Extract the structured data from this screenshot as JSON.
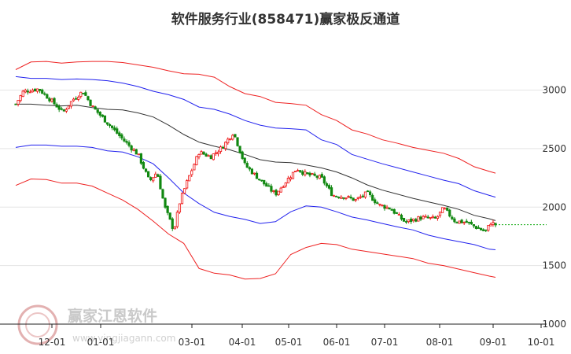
{
  "chart_data": {
    "type": "line",
    "title": "软件服务行业(858471)赢家极反通道",
    "x_ticks": [
      "12-01",
      "01-01",
      "03-01",
      "04-01",
      "05-01",
      "06-01",
      "07-01",
      "08-01",
      "09-01",
      "10-01"
    ],
    "y_ticks": [
      1000,
      1500,
      2000,
      2500,
      3000
    ],
    "ylim": [
      1000,
      3400
    ],
    "grid": true,
    "colors": {
      "outer": "#ee2222",
      "inner": "#2222ee",
      "mid": "#333333",
      "up": "#ee1111",
      "down": "#118811",
      "last": "#11aa11"
    },
    "watermark": {
      "text": "赢家江恩软件",
      "url": "www.yingjiagann.com"
    },
    "last_price": 1850,
    "series": [
      {
        "key": "outer_upper",
        "points": [
          [
            0,
            3175
          ],
          [
            20,
            3240
          ],
          [
            40,
            3245
          ],
          [
            60,
            3230
          ],
          [
            80,
            3240
          ],
          [
            100,
            3245
          ],
          [
            120,
            3245
          ],
          [
            140,
            3235
          ],
          [
            160,
            3215
          ],
          [
            180,
            3195
          ],
          [
            200,
            3165
          ],
          [
            220,
            3140
          ],
          [
            240,
            3135
          ],
          [
            260,
            3110
          ],
          [
            280,
            3030
          ],
          [
            300,
            2970
          ],
          [
            320,
            2945
          ],
          [
            340,
            2895
          ],
          [
            360,
            2885
          ],
          [
            380,
            2870
          ],
          [
            400,
            2790
          ],
          [
            420,
            2740
          ],
          [
            440,
            2660
          ],
          [
            460,
            2625
          ],
          [
            480,
            2575
          ],
          [
            500,
            2545
          ],
          [
            520,
            2510
          ],
          [
            540,
            2485
          ],
          [
            560,
            2460
          ],
          [
            580,
            2415
          ],
          [
            600,
            2345
          ],
          [
            620,
            2305
          ],
          [
            628,
            2290
          ]
        ]
      },
      {
        "key": "inner_upper",
        "points": [
          [
            0,
            3115
          ],
          [
            20,
            3100
          ],
          [
            40,
            3100
          ],
          [
            60,
            3090
          ],
          [
            80,
            3095
          ],
          [
            100,
            3090
          ],
          [
            120,
            3080
          ],
          [
            140,
            3060
          ],
          [
            160,
            3030
          ],
          [
            180,
            2990
          ],
          [
            200,
            2960
          ],
          [
            220,
            2920
          ],
          [
            240,
            2855
          ],
          [
            260,
            2835
          ],
          [
            280,
            2795
          ],
          [
            300,
            2740
          ],
          [
            320,
            2700
          ],
          [
            340,
            2675
          ],
          [
            360,
            2670
          ],
          [
            380,
            2660
          ],
          [
            400,
            2575
          ],
          [
            420,
            2535
          ],
          [
            440,
            2450
          ],
          [
            460,
            2410
          ],
          [
            480,
            2370
          ],
          [
            500,
            2335
          ],
          [
            520,
            2300
          ],
          [
            540,
            2265
          ],
          [
            560,
            2230
          ],
          [
            580,
            2200
          ],
          [
            600,
            2140
          ],
          [
            620,
            2100
          ],
          [
            628,
            2085
          ]
        ]
      },
      {
        "key": "middle",
        "points": [
          [
            0,
            2880
          ],
          [
            20,
            2880
          ],
          [
            40,
            2870
          ],
          [
            60,
            2865
          ],
          [
            80,
            2870
          ],
          [
            100,
            2850
          ],
          [
            120,
            2835
          ],
          [
            140,
            2830
          ],
          [
            160,
            2805
          ],
          [
            180,
            2770
          ],
          [
            200,
            2700
          ],
          [
            220,
            2620
          ],
          [
            240,
            2555
          ],
          [
            260,
            2520
          ],
          [
            280,
            2490
          ],
          [
            300,
            2450
          ],
          [
            320,
            2405
          ],
          [
            340,
            2385
          ],
          [
            360,
            2380
          ],
          [
            380,
            2360
          ],
          [
            400,
            2335
          ],
          [
            420,
            2300
          ],
          [
            440,
            2250
          ],
          [
            460,
            2190
          ],
          [
            480,
            2145
          ],
          [
            500,
            2110
          ],
          [
            520,
            2075
          ],
          [
            540,
            2045
          ],
          [
            560,
            2015
          ],
          [
            580,
            1980
          ],
          [
            600,
            1930
          ],
          [
            620,
            1900
          ],
          [
            628,
            1885
          ]
        ]
      },
      {
        "key": "inner_lower",
        "points": [
          [
            0,
            2510
          ],
          [
            20,
            2530
          ],
          [
            40,
            2530
          ],
          [
            60,
            2520
          ],
          [
            80,
            2520
          ],
          [
            100,
            2510
          ],
          [
            120,
            2480
          ],
          [
            140,
            2470
          ],
          [
            160,
            2430
          ],
          [
            180,
            2370
          ],
          [
            200,
            2250
          ],
          [
            220,
            2120
          ],
          [
            240,
            2030
          ],
          [
            260,
            1955
          ],
          [
            280,
            1920
          ],
          [
            300,
            1895
          ],
          [
            320,
            1860
          ],
          [
            340,
            1875
          ],
          [
            360,
            1960
          ],
          [
            380,
            2010
          ],
          [
            400,
            2000
          ],
          [
            420,
            1960
          ],
          [
            440,
            1915
          ],
          [
            460,
            1890
          ],
          [
            480,
            1860
          ],
          [
            500,
            1830
          ],
          [
            520,
            1805
          ],
          [
            540,
            1760
          ],
          [
            560,
            1730
          ],
          [
            580,
            1705
          ],
          [
            600,
            1680
          ],
          [
            620,
            1640
          ],
          [
            628,
            1635
          ]
        ]
      },
      {
        "key": "outer_lower",
        "points": [
          [
            0,
            2185
          ],
          [
            20,
            2240
          ],
          [
            40,
            2235
          ],
          [
            60,
            2205
          ],
          [
            80,
            2205
          ],
          [
            100,
            2180
          ],
          [
            120,
            2120
          ],
          [
            140,
            2060
          ],
          [
            160,
            1980
          ],
          [
            180,
            1880
          ],
          [
            200,
            1770
          ],
          [
            220,
            1690
          ],
          [
            240,
            1475
          ],
          [
            260,
            1435
          ],
          [
            280,
            1420
          ],
          [
            300,
            1385
          ],
          [
            320,
            1390
          ],
          [
            340,
            1430
          ],
          [
            360,
            1595
          ],
          [
            380,
            1655
          ],
          [
            400,
            1690
          ],
          [
            420,
            1680
          ],
          [
            440,
            1640
          ],
          [
            460,
            1620
          ],
          [
            480,
            1600
          ],
          [
            500,
            1580
          ],
          [
            520,
            1560
          ],
          [
            540,
            1520
          ],
          [
            560,
            1500
          ],
          [
            580,
            1470
          ],
          [
            600,
            1440
          ],
          [
            620,
            1410
          ],
          [
            628,
            1400
          ]
        ]
      }
    ],
    "candles_anchor": [
      [
        0,
        2880
      ],
      [
        10,
        2990
      ],
      [
        30,
        3010
      ],
      [
        45,
        2920
      ],
      [
        62,
        2810
      ],
      [
        75,
        2920
      ],
      [
        88,
        2990
      ],
      [
        100,
        2860
      ],
      [
        120,
        2720
      ],
      [
        140,
        2580
      ],
      [
        160,
        2450
      ],
      [
        175,
        2220
      ],
      [
        185,
        2300
      ],
      [
        195,
        2000
      ],
      [
        207,
        1800
      ],
      [
        215,
        2050
      ],
      [
        225,
        2230
      ],
      [
        240,
        2470
      ],
      [
        255,
        2430
      ],
      [
        270,
        2510
      ],
      [
        285,
        2640
      ],
      [
        300,
        2360
      ],
      [
        320,
        2230
      ],
      [
        340,
        2110
      ],
      [
        355,
        2230
      ],
      [
        368,
        2330
      ],
      [
        380,
        2280
      ],
      [
        400,
        2250
      ],
      [
        415,
        2100
      ],
      [
        430,
        2090
      ],
      [
        445,
        2060
      ],
      [
        460,
        2120
      ],
      [
        475,
        2020
      ],
      [
        490,
        1990
      ],
      [
        510,
        1870
      ],
      [
        530,
        1910
      ],
      [
        550,
        1900
      ],
      [
        560,
        1990
      ],
      [
        575,
        1880
      ],
      [
        590,
        1870
      ],
      [
        605,
        1820
      ],
      [
        615,
        1790
      ],
      [
        622,
        1870
      ],
      [
        628,
        1850
      ]
    ]
  }
}
